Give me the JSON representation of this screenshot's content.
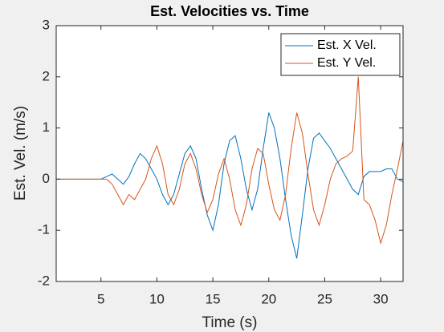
{
  "chart_data": {
    "type": "line",
    "title": "Est. Velocities vs. Time",
    "xlabel": "Time (s)",
    "ylabel": "Est. Vel. (m/s)",
    "x": [
      1,
      1.5,
      2,
      2.5,
      3,
      3.5,
      4,
      4.5,
      5,
      5.5,
      6,
      6.5,
      7,
      7.5,
      8,
      8.5,
      9,
      9.5,
      10,
      10.5,
      11,
      11.5,
      12,
      12.5,
      13,
      13.5,
      14,
      14.5,
      15,
      15.5,
      16,
      16.5,
      17,
      17.5,
      18,
      18.5,
      19,
      19.5,
      20,
      20.5,
      21,
      21.5,
      22,
      22.5,
      23,
      23.5,
      24,
      24.5,
      25,
      25.5,
      26,
      26.5,
      27,
      27.5,
      28,
      28.5,
      29,
      29.5,
      30,
      30.5,
      31,
      31.5,
      32
    ],
    "series": [
      {
        "name": "Est. X Vel.",
        "color": "#0072bd",
        "values": [
          0,
          0,
          0,
          0,
          0,
          0,
          0,
          0,
          0,
          0.05,
          0.1,
          0,
          -0.1,
          0.05,
          0.3,
          0.5,
          0.4,
          0.2,
          0,
          -0.3,
          -0.5,
          -0.3,
          0.1,
          0.5,
          0.65,
          0.4,
          -0.2,
          -0.7,
          -1.0,
          -0.5,
          0.3,
          0.75,
          0.85,
          0.4,
          -0.2,
          -0.6,
          -0.2,
          0.6,
          1.3,
          1.0,
          0.4,
          -0.4,
          -1.1,
          -1.55,
          -0.7,
          0.2,
          0.8,
          0.9,
          0.75,
          0.6,
          0.4,
          0.2,
          0,
          -0.2,
          -0.3,
          0.05,
          0.15,
          0.15,
          0.15,
          0.2,
          0.2,
          0,
          -0.05
        ]
      },
      {
        "name": "Est. Y Vel.",
        "color": "#d95319",
        "values": [
          0,
          0,
          0,
          0,
          0,
          0,
          0,
          0,
          0,
          0,
          -0.1,
          -0.3,
          -0.5,
          -0.3,
          -0.4,
          -0.2,
          0,
          0.4,
          0.65,
          0.3,
          -0.3,
          -0.5,
          -0.2,
          0.3,
          0.5,
          0.2,
          -0.3,
          -0.65,
          -0.4,
          0.1,
          0.4,
          0,
          -0.6,
          -0.9,
          -0.5,
          0.2,
          0.6,
          0.5,
          -0.1,
          -0.6,
          -0.8,
          -0.3,
          0.6,
          1.3,
          0.9,
          0.1,
          -0.6,
          -0.9,
          -0.5,
          0,
          0.3,
          0.4,
          0.45,
          0.55,
          2.0,
          -0.4,
          -0.5,
          -0.8,
          -1.25,
          -0.9,
          -0.3,
          0.2,
          0.75
        ]
      }
    ],
    "xlim": [
      1,
      32
    ],
    "xticks": [
      5,
      10,
      15,
      20,
      25,
      30
    ],
    "ylim": [
      -2,
      3
    ],
    "yticks": [
      -2,
      -1,
      0,
      1,
      2,
      3
    ],
    "legend": "northeast"
  }
}
